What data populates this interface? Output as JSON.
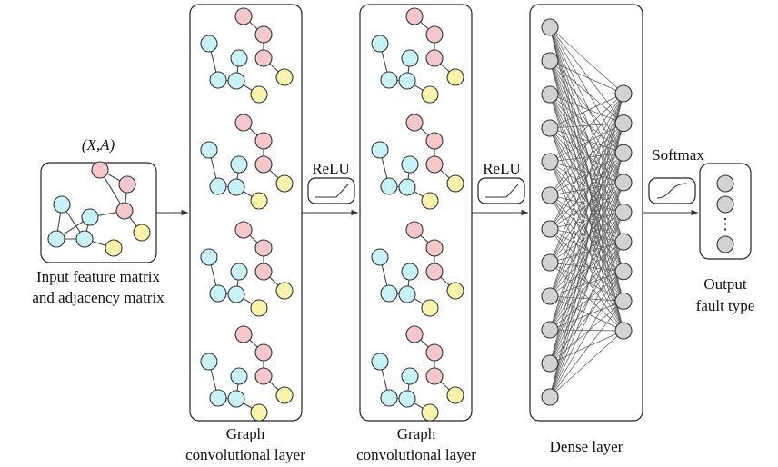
{
  "input": {
    "symbol": "(X,A)",
    "label_line1": "Input feature matrix",
    "label_line2": "and adjacency matrix"
  },
  "gcn1": {
    "label_line1": "Graph",
    "label_line2": "convolutional layer"
  },
  "relu1": {
    "label": "ReLU"
  },
  "gcn2": {
    "label_line1": "Graph",
    "label_line2": "convolutional layer"
  },
  "relu2": {
    "label": "ReLU"
  },
  "dense": {
    "label": "Dense layer",
    "input_neurons": 12,
    "hidden_neurons": 9
  },
  "softmax": {
    "label": "Softmax"
  },
  "output": {
    "label_line1": "Output",
    "label_line2": "fault type",
    "ellipsis": "⋮"
  },
  "colors": {
    "cyan": "#c8f2f6",
    "pink": "#f4c7cc",
    "yellow": "#f8f3aa",
    "gray": "#d2d2d2"
  }
}
